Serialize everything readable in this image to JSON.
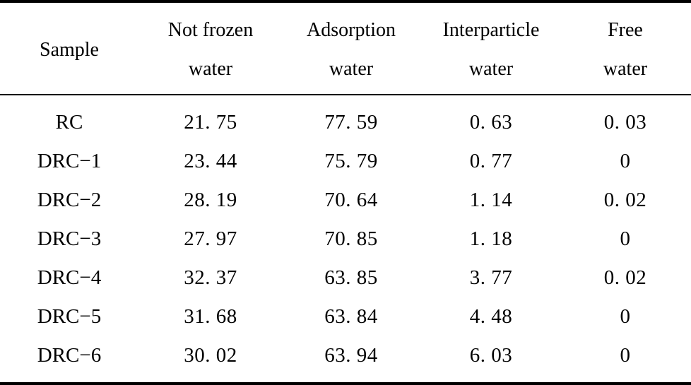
{
  "table": {
    "headers": [
      {
        "line1": "Sample",
        "line2": ""
      },
      {
        "line1": "Not frozen",
        "line2": "water"
      },
      {
        "line1": "Adsorption",
        "line2": "water"
      },
      {
        "line1": "Interparticle",
        "line2": "water"
      },
      {
        "line1": "Free",
        "line2": "water"
      }
    ],
    "rows": [
      [
        "RC",
        "21. 75",
        "77. 59",
        "0. 63",
        "0. 03"
      ],
      [
        "DRC−1",
        "23. 44",
        "75. 79",
        "0. 77",
        "0"
      ],
      [
        "DRC−2",
        "28. 19",
        "70. 64",
        "1. 14",
        "0. 02"
      ],
      [
        "DRC−3",
        "27. 97",
        "70. 85",
        "1. 18",
        "0"
      ],
      [
        "DRC−4",
        "32. 37",
        "63. 85",
        "3. 77",
        "0. 02"
      ],
      [
        "DRC−5",
        "31. 68",
        "63. 84",
        "4. 48",
        "0"
      ],
      [
        "DRC−6",
        "30. 02",
        "63. 94",
        "6. 03",
        "0"
      ]
    ]
  }
}
